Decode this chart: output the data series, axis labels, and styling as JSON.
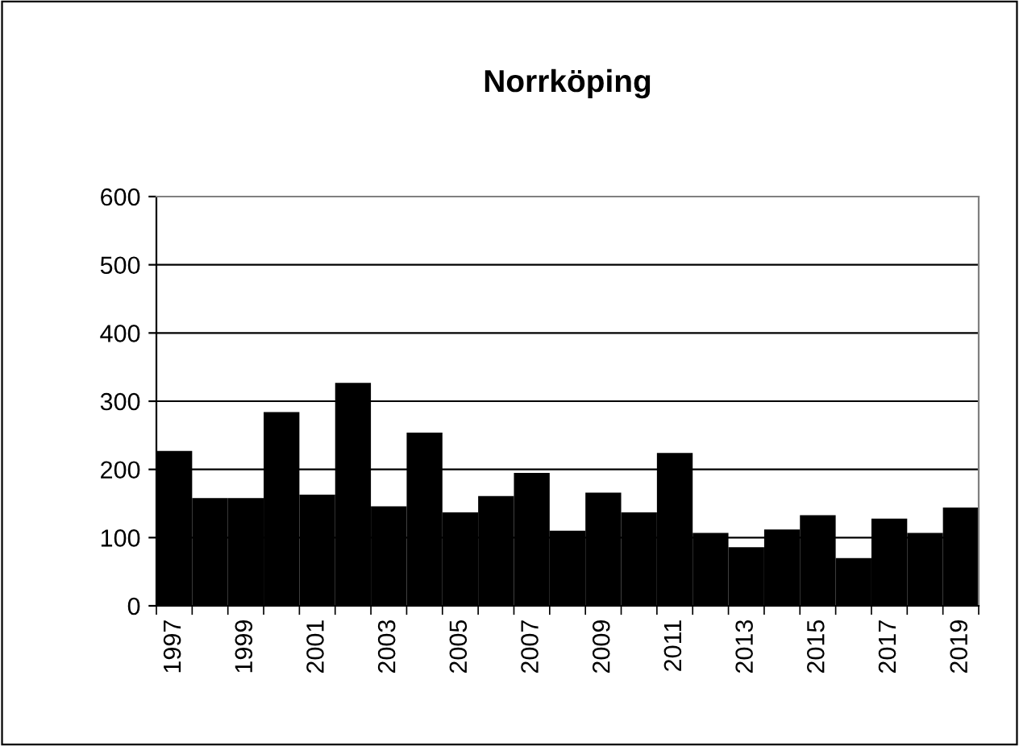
{
  "chart_data": {
    "type": "bar",
    "title": "Norrköping",
    "categories": [
      "1997",
      null,
      "1999",
      null,
      "2001",
      null,
      "2003",
      null,
      "2005",
      null,
      "2007",
      null,
      "2009",
      null,
      "2011",
      null,
      "2013",
      null,
      "2015",
      null,
      "2017",
      null,
      "2019"
    ],
    "values": [
      227,
      158,
      158,
      284,
      163,
      327,
      146,
      254,
      137,
      161,
      195,
      110,
      166,
      137,
      224,
      107,
      86,
      112,
      133,
      70,
      128,
      107,
      144
    ],
    "color": "#000000",
    "ylim": [
      0,
      600
    ],
    "yticks": [
      0,
      100,
      200,
      300,
      400,
      500,
      600
    ],
    "grid": "y"
  }
}
